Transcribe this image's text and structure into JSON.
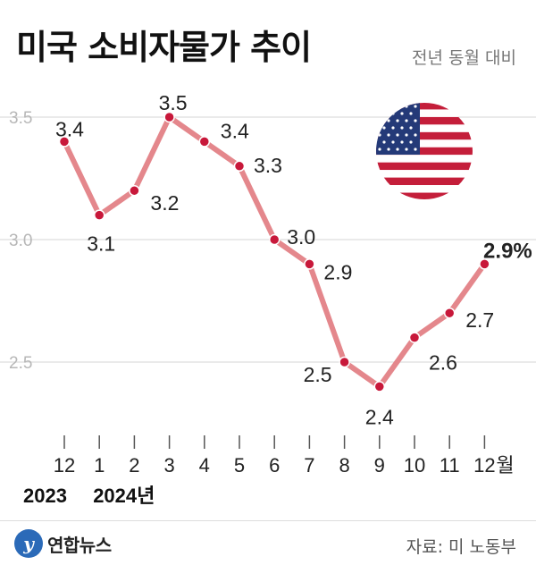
{
  "header": {
    "title": "미국 소비자물가 추이",
    "subtitle": "전년 동월 대비"
  },
  "footer": {
    "logo_letter": "y",
    "logo_text": "연합뉴스",
    "source": "자료: 미 노동부"
  },
  "flag": {
    "icon": "us-flag-icon"
  },
  "colors": {
    "line": "#e4878c",
    "point": "#c8183a",
    "grid": "#e3e3e3"
  },
  "chart_data": {
    "type": "line",
    "title": "미국 소비자물가 추이",
    "subtitle": "전년 동월 대비",
    "categories": [
      "12",
      "1",
      "2",
      "3",
      "4",
      "5",
      "6",
      "7",
      "8",
      "9",
      "10",
      "11",
      "12"
    ],
    "category_unit": "월",
    "years": [
      {
        "label": "2023",
        "unit": "",
        "category_index": 0
      },
      {
        "label": "2024",
        "unit": "년",
        "category_index": 1
      }
    ],
    "series": [
      {
        "values": [
          3.4,
          3.1,
          3.2,
          3.5,
          3.4,
          3.3,
          3.0,
          2.9,
          2.5,
          2.4,
          2.6,
          2.7,
          2.9
        ],
        "labels": [
          "3.4",
          "3.1",
          "3.2",
          "3.5",
          "3.4",
          "3.3",
          "3.0",
          "2.9",
          "2.5",
          "2.4",
          "2.6",
          "2.7",
          "2.9%"
        ]
      }
    ],
    "y_ticks": [
      "3.5",
      "3.0",
      "2.5"
    ],
    "ylim": [
      2.3,
      3.5
    ],
    "grid": true
  }
}
